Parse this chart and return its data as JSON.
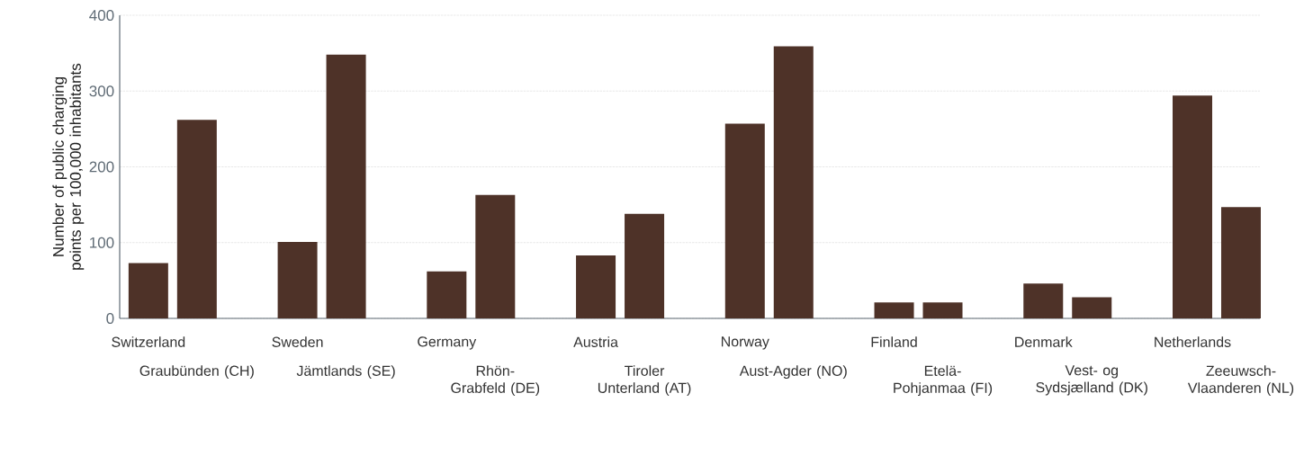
{
  "chart_data": {
    "type": "bar",
    "ylabel": "Number of public charging points per 100,000 inhabitants",
    "categories": [
      "Switzerland",
      "Graubünden (CH)",
      "Sweden",
      "Jämtlands (SE)",
      "Germany",
      "Rhön-Grabfeld (DE)",
      "Austria",
      "Tiroler Unterland (AT)",
      "Norway",
      "Aust-Agder (NO)",
      "Finland",
      "Etelä-Pohjanmaa (FI)",
      "Denmark",
      "Vest- og Sydsjælland (DK)",
      "Netherlands",
      "Zeeuwsch-Vlaanderen (NL)"
    ],
    "values": [
      73,
      262,
      101,
      348,
      62,
      163,
      83,
      138,
      257,
      359,
      21,
      21,
      46,
      28,
      294,
      147
    ],
    "color": "#4e3228",
    "ylim": [
      0,
      400
    ],
    "yticks": [
      0,
      100,
      200,
      300,
      400
    ],
    "grid": "y"
  }
}
